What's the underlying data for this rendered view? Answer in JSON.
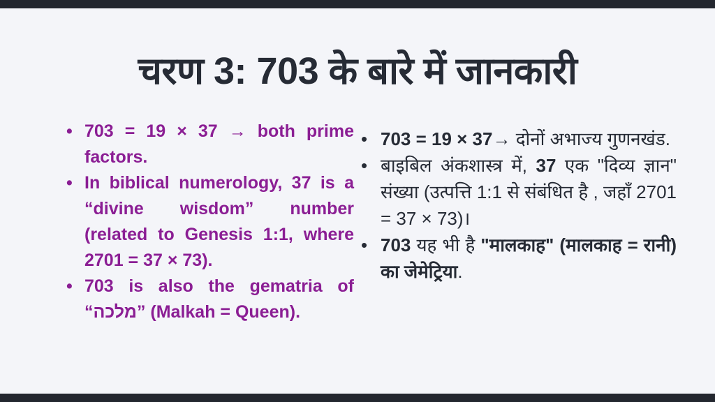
{
  "colors": {
    "background": "#f4f5f9",
    "bar": "#23272f",
    "title": "#262b35",
    "purple": "#8b1e94",
    "dark_text": "#262b35"
  },
  "title": "चरण 3: 703 के बारे में जानकारी",
  "left_column": {
    "language": "English",
    "bullets": [
      {
        "segments": [
          {
            "text": "703 = 19 × 37 → both prime factors.",
            "bold": true
          }
        ]
      },
      {
        "segments": [
          {
            "text": "In biblical numerology, 37 is a “divine wisdom” number (related to Genesis 1:1, where 2701 = 37 × 73).",
            "bold": true
          }
        ]
      },
      {
        "segments": [
          {
            "text": "703 is also the gematria of “מלכה” (Malkah = Queen).",
            "bold": true
          }
        ]
      }
    ]
  },
  "right_column": {
    "language": "Hindi",
    "bullets": [
      {
        "segments": [
          {
            "text": "703 = 19 × 37",
            "bold": true
          },
          {
            "text": "→ दोनों अभाज्य गुणनखंड.",
            "bold": false
          }
        ]
      },
      {
        "segments": [
          {
            "text": "बाइबिल अंकशास्त्र में, ",
            "bold": false
          },
          {
            "text": "37",
            "bold": true
          },
          {
            "text": " एक \"दिव्य ज्ञान\" संख्या (उत्पत्ति 1:1 से संबंधित है , जहाँ 2701 = 37 × 73)।",
            "bold": false
          }
        ]
      },
      {
        "segments": [
          {
            "text": "703",
            "bold": true
          },
          {
            "text": " यह भी है ",
            "bold": false
          },
          {
            "text": "\"मालकाह\" (मालकाह = रानी) का जेमेट्रिया",
            "bold": true
          },
          {
            "text": ".",
            "bold": false
          }
        ]
      }
    ]
  }
}
